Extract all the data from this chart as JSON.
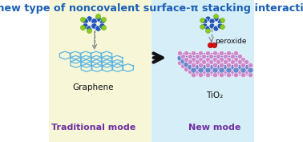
{
  "title": "A new type of noncovalent surface-π stacking interaction",
  "title_color": "#1a5fb4",
  "title_fontsize": 9.2,
  "bg_left_color": "#f7f7d8",
  "bg_right_color": "#d5eef8",
  "label_traditional": "Traditional mode",
  "label_new": "New mode",
  "label_graphene": "Graphene",
  "label_tio2": "TiO₂",
  "label_peroxide": "peroxide",
  "label_color": "#7030a0",
  "graphene_edge": "#5ab4e0",
  "molecule_blue": "#2255bb",
  "molecule_green": "#88cc22",
  "tio2_blue": "#6688cc",
  "tio2_pink": "#cc88cc",
  "peroxide_red": "#dd1111",
  "arrow_color": "#111111",
  "dashed_color": "#888888"
}
